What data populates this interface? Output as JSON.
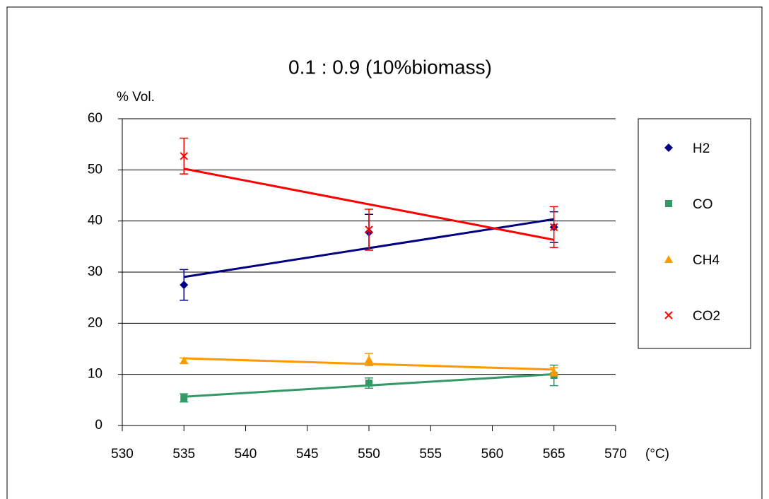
{
  "chart_data": {
    "type": "scatter",
    "title": "0.1 : 0.9 (10%biomass)",
    "y_label": "% Vol.",
    "x_label": "(°C)",
    "x": [
      535,
      550,
      565
    ],
    "xlim": [
      530,
      570
    ],
    "xticks": [
      530,
      535,
      540,
      545,
      550,
      555,
      560,
      565,
      570
    ],
    "ylim": [
      0,
      60
    ],
    "yticks": [
      0,
      10,
      20,
      30,
      40,
      50,
      60
    ],
    "grid": true,
    "trendline": "linear",
    "legend": "right",
    "series": [
      {
        "name": "H2",
        "color": "#000080",
        "marker": "diamond",
        "values": [
          27.5,
          37.8,
          38.8
        ],
        "errors": [
          3,
          3.5,
          3
        ]
      },
      {
        "name": "CO",
        "color": "#339966",
        "marker": "square",
        "values": [
          5.4,
          8.3,
          9.8
        ],
        "errors": [
          0.8,
          1,
          2
        ]
      },
      {
        "name": "CH4",
        "color": "#FF9900",
        "marker": "triangle",
        "values": [
          12.7,
          12.9,
          10.5
        ],
        "errors": [
          0.5,
          1.2,
          0.8
        ]
      },
      {
        "name": "CO2",
        "color": "#FF0000",
        "marker": "cross",
        "values": [
          52.7,
          38.3,
          38.8
        ],
        "errors": [
          3.5,
          4,
          4
        ]
      }
    ]
  }
}
